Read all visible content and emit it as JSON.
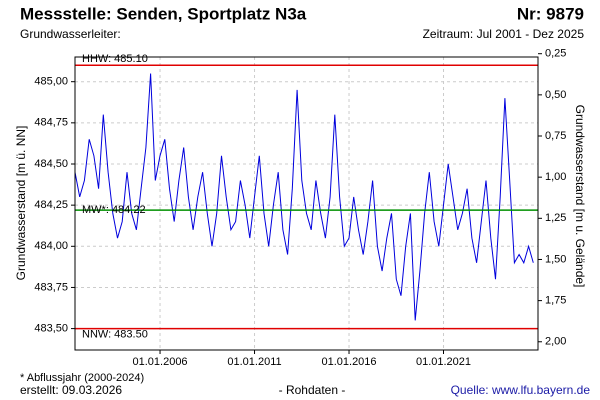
{
  "chart_data": {
    "type": "line",
    "title": "Messstelle: Senden, Sportplatz N3a",
    "number": "Nr: 9879",
    "subtitle": "Grundwasserleiter:",
    "period": "Zeitraum: Jul 2001 - Dez 2025",
    "y_label": "Grundwasserstand [m ü. NN]",
    "y2_label": "Grundwasserstand [m u. Gelände]",
    "footnote": "* Abflussjahr (2000-2024)",
    "created": "erstellt:  09.03.2026",
    "data_kind": "- Rohdaten -",
    "source": "Quelle:  www.lfu.bayern.de",
    "grid": true,
    "xlim": [
      "2001-07-01",
      "2026-01-01"
    ],
    "xticks": [
      {
        "value": "2006-01-01",
        "label": "01.01.2006"
      },
      {
        "value": "2011-01-01",
        "label": "01.01.2011"
      },
      {
        "value": "2016-01-01",
        "label": "01.01.2016"
      },
      {
        "value": "2021-01-01",
        "label": "01.01.2021"
      }
    ],
    "ylim": [
      483.37,
      485.15
    ],
    "yticks": [
      {
        "value": 483.5,
        "label": "483,50"
      },
      {
        "value": 483.75,
        "label": "483,75"
      },
      {
        "value": 484,
        "label": "484,00"
      },
      {
        "value": 484.25,
        "label": "484,25"
      },
      {
        "value": 484.5,
        "label": "484,50"
      },
      {
        "value": 484.75,
        "label": "484,75"
      },
      {
        "value": 485,
        "label": "485,00"
      }
    ],
    "y2lim": [
      0.27,
      2.05
    ],
    "y2ticks": [
      {
        "value": 0.25,
        "label": "0,25"
      },
      {
        "value": 0.5,
        "label": "0,50"
      },
      {
        "value": 0.75,
        "label": "0,75"
      },
      {
        "value": 1,
        "label": "1,00"
      },
      {
        "value": 1.25,
        "label": "1,25"
      },
      {
        "value": 1.5,
        "label": "1,50"
      },
      {
        "value": 1.75,
        "label": "1,75"
      },
      {
        "value": 2,
        "label": "2,00"
      }
    ],
    "reference_lines": [
      {
        "label": "HHW: 485.10",
        "value": 485.1,
        "color": "#e00000"
      },
      {
        "label": "MW*: 484.22",
        "value": 484.22,
        "color": "#009000"
      },
      {
        "label": "NNW: 483.50",
        "value": 483.5,
        "color": "#e00000"
      }
    ],
    "x": [
      "2001-07",
      "2001-10",
      "2002-01",
      "2002-04",
      "2002-07",
      "2002-10",
      "2003-01",
      "2003-04",
      "2003-07",
      "2003-10",
      "2004-01",
      "2004-04",
      "2004-07",
      "2004-10",
      "2005-01",
      "2005-04",
      "2005-07",
      "2005-10",
      "2006-01",
      "2006-04",
      "2006-07",
      "2006-10",
      "2007-01",
      "2007-04",
      "2007-07",
      "2007-10",
      "2008-01",
      "2008-04",
      "2008-07",
      "2008-10",
      "2009-01",
      "2009-04",
      "2009-07",
      "2009-10",
      "2010-01",
      "2010-04",
      "2010-07",
      "2010-10",
      "2011-01",
      "2011-04",
      "2011-07",
      "2011-10",
      "2012-01",
      "2012-04",
      "2012-07",
      "2012-10",
      "2013-01",
      "2013-04",
      "2013-07",
      "2013-10",
      "2014-01",
      "2014-04",
      "2014-07",
      "2014-10",
      "2015-01",
      "2015-04",
      "2015-07",
      "2015-10",
      "2016-01",
      "2016-04",
      "2016-07",
      "2016-10",
      "2017-01",
      "2017-04",
      "2017-07",
      "2017-10",
      "2018-01",
      "2018-04",
      "2018-07",
      "2018-10",
      "2019-01",
      "2019-04",
      "2019-07",
      "2019-10",
      "2020-01",
      "2020-04",
      "2020-07",
      "2020-10",
      "2021-01",
      "2021-04",
      "2021-07",
      "2021-10",
      "2022-01",
      "2022-04",
      "2022-07",
      "2022-10",
      "2023-01",
      "2023-04",
      "2023-07",
      "2023-10",
      "2024-01",
      "2024-04",
      "2024-07",
      "2024-10",
      "2025-01",
      "2025-04",
      "2025-07",
      "2025-10"
    ],
    "series": [
      {
        "color": "#0000dd",
        "values": [
          484.45,
          484.3,
          484.4,
          484.65,
          484.55,
          484.35,
          484.8,
          484.45,
          484.2,
          484.05,
          484.15,
          484.45,
          484.2,
          484.1,
          484.35,
          484.6,
          485.05,
          484.4,
          484.55,
          484.65,
          484.35,
          484.15,
          484.4,
          484.6,
          484.3,
          484.1,
          484.3,
          484.45,
          484.2,
          484.0,
          484.2,
          484.55,
          484.3,
          484.1,
          484.15,
          484.4,
          484.25,
          484.05,
          484.3,
          484.55,
          484.2,
          484.0,
          484.25,
          484.45,
          484.1,
          483.95,
          484.35,
          484.95,
          484.4,
          484.2,
          484.1,
          484.4,
          484.2,
          484.05,
          484.3,
          484.8,
          484.3,
          484.0,
          484.05,
          484.3,
          484.1,
          483.95,
          484.15,
          484.4,
          484.0,
          483.85,
          484.05,
          484.2,
          483.8,
          483.7,
          484.0,
          484.2,
          483.55,
          483.85,
          484.2,
          484.45,
          484.15,
          484.0,
          484.25,
          484.5,
          484.3,
          484.1,
          484.2,
          484.35,
          484.05,
          483.9,
          484.15,
          484.4,
          484.05,
          483.8,
          484.3,
          484.9,
          484.4,
          483.9,
          483.95,
          483.9,
          484.0,
          483.9
        ]
      }
    ]
  }
}
